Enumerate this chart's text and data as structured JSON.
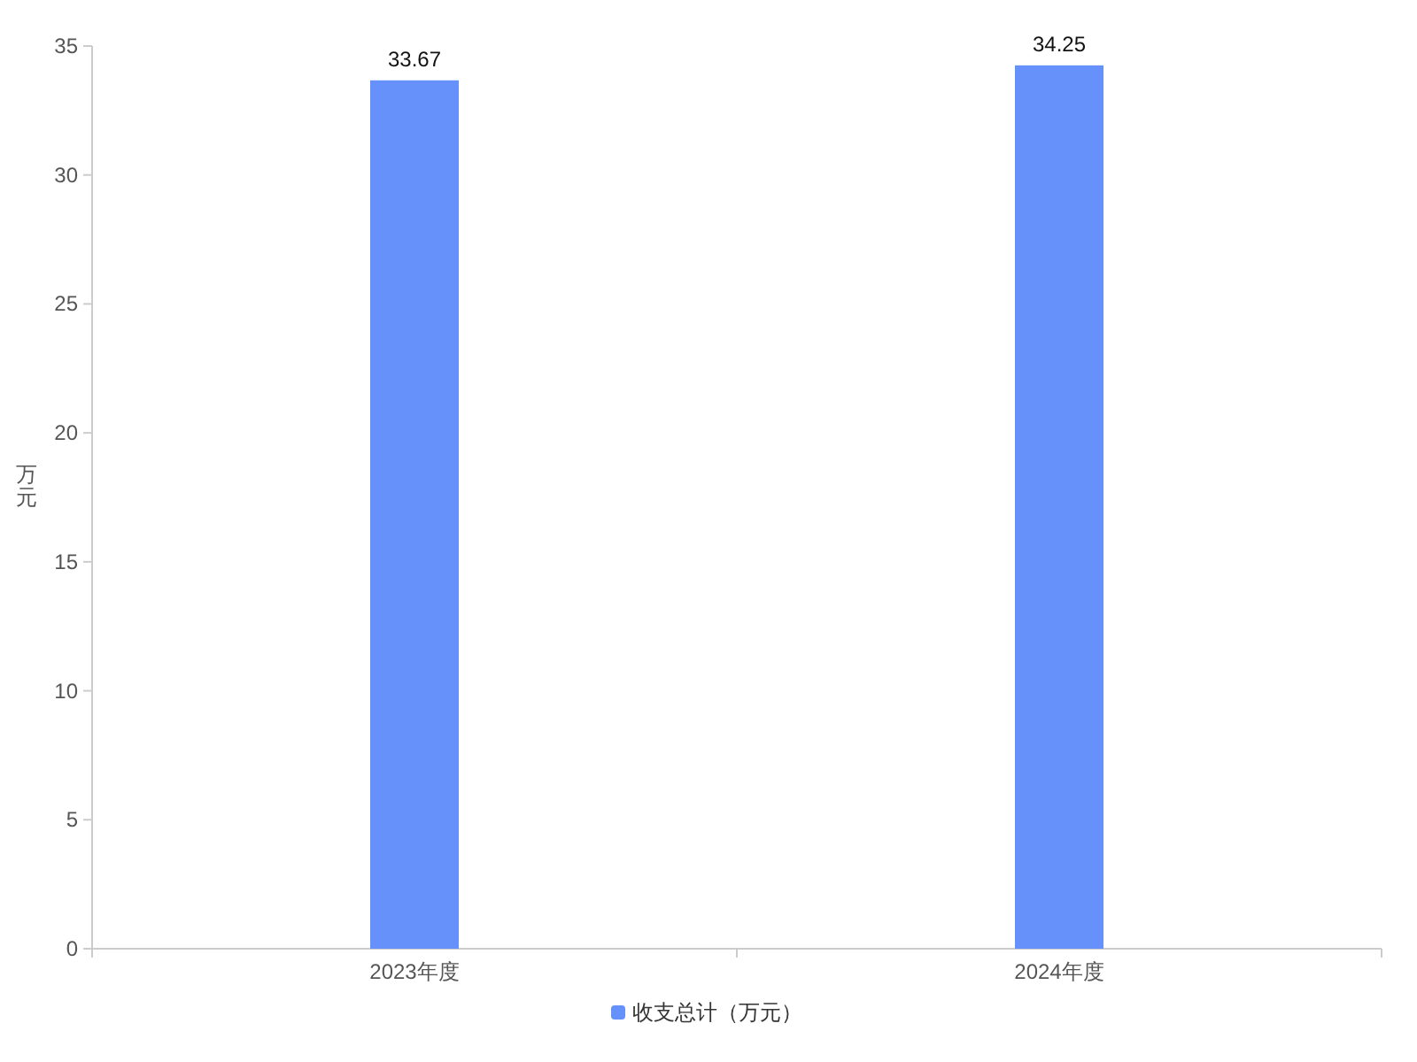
{
  "chart_data": {
    "type": "bar",
    "categories": [
      "2023年度",
      "2024年度"
    ],
    "series": [
      {
        "name": "收支总计（万元）",
        "color": "#6691fb",
        "values": [
          33.67,
          34.25
        ]
      }
    ],
    "ylabel": "万元",
    "ylim": [
      0,
      35
    ],
    "yticks": [
      0,
      5,
      10,
      15,
      20,
      25,
      30,
      35
    ],
    "data_labels": true,
    "legend": "bottom"
  }
}
